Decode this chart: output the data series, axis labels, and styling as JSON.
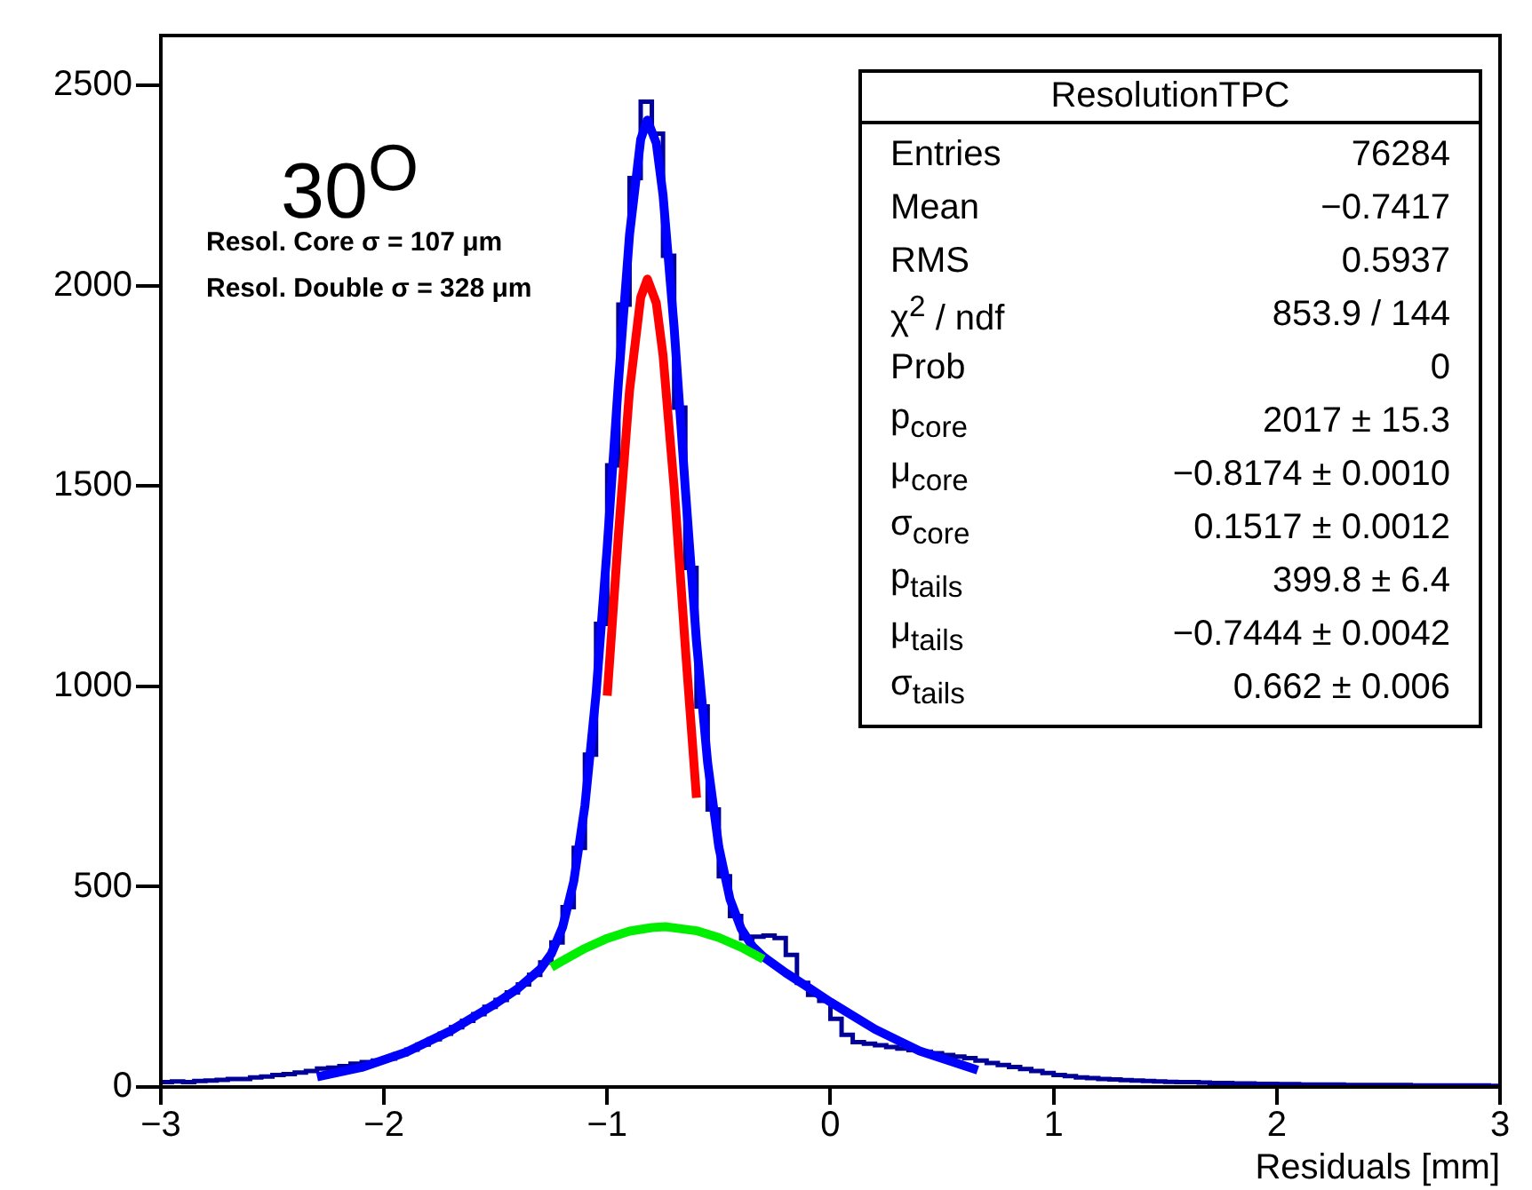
{
  "chart_data": {
    "type": "histogram",
    "xlabel": "Residuals [mm]",
    "xlim": [
      -3,
      3
    ],
    "xticks": [
      -3,
      -2,
      -1,
      0,
      1,
      2,
      3
    ],
    "ylim": [
      0,
      2625
    ],
    "yticks": [
      0,
      500,
      1000,
      1500,
      2000,
      2500
    ],
    "grid": false,
    "legend": false,
    "series": [
      {
        "type": "histogram",
        "color": "#000099",
        "bins": [
          -3,
          -2.95,
          -2.9,
          -2.85,
          -2.8,
          -2.75,
          -2.7,
          -2.65,
          -2.6,
          -2.55,
          -2.5,
          -2.45,
          -2.4,
          -2.35,
          -2.3,
          -2.25,
          -2.2,
          -2.15,
          -2.1,
          -2.05,
          -2,
          -1.95,
          -1.9,
          -1.85,
          -1.8,
          -1.75,
          -1.7,
          -1.65,
          -1.6,
          -1.55,
          -1.5,
          -1.45,
          -1.4,
          -1.35,
          -1.3,
          -1.25,
          -1.2,
          -1.15,
          -1.1,
          -1.05,
          -1,
          -0.95,
          -0.9,
          -0.85,
          -0.8,
          -0.75,
          -0.7,
          -0.65,
          -0.6,
          -0.55,
          -0.5,
          -0.45,
          -0.4,
          -0.35,
          -0.3,
          -0.25,
          -0.2,
          -0.15,
          -0.1,
          -0.05,
          0,
          0.05,
          0.1,
          0.15,
          0.2,
          0.25,
          0.3,
          0.35,
          0.4,
          0.45,
          0.5,
          0.55,
          0.6,
          0.65,
          0.7,
          0.75,
          0.8,
          0.85,
          0.9,
          0.95,
          1,
          1.05,
          1.1,
          1.15,
          1.2,
          1.25,
          1.3,
          1.35,
          1.4,
          1.45,
          1.5,
          1.55,
          1.6,
          1.65,
          1.7,
          1.75,
          1.8,
          1.85,
          1.9,
          1.95,
          2,
          2.05,
          2.1,
          2.15,
          2.2,
          2.25,
          2.3,
          2.35,
          2.4,
          2.45,
          2.5,
          2.55,
          2.6,
          2.65,
          2.7,
          2.75,
          2.8,
          2.85,
          2.9,
          2.95,
          3
        ],
        "values": [
          12,
          14,
          12,
          15,
          16,
          18,
          20,
          20,
          24,
          26,
          30,
          32,
          36,
          40,
          46,
          48,
          52,
          58,
          62,
          66,
          71,
          82,
          93,
          106,
          119,
          133,
          149,
          165,
          182,
          200,
          217,
          236,
          256,
          280,
          311,
          361,
          449,
          597,
          830,
          1156,
          1552,
          1953,
          2269,
          2460,
          2380,
          2075,
          1696,
          1296,
          950,
          693,
          526,
          427,
          371,
          375,
          378,
          372,
          330,
          260,
          230,
          215,
          170,
          130,
          112,
          108,
          104,
          100,
          96,
          92,
          88,
          84,
          80,
          76,
          72,
          66,
          60,
          55,
          50,
          45,
          40,
          35,
          30,
          27,
          24,
          22,
          20,
          19,
          17,
          16,
          15,
          14,
          13,
          12,
          12,
          11,
          10,
          10,
          9,
          9,
          8,
          8,
          7,
          7,
          6,
          6,
          6,
          6,
          5,
          5,
          5,
          5,
          5,
          5,
          4,
          4,
          4,
          4,
          4,
          4,
          4,
          3
        ]
      },
      {
        "type": "line",
        "color": "#0000ff",
        "x": [
          -2.3,
          -2.1,
          -1.9,
          -1.7,
          -1.5,
          -1.4,
          -1.3,
          -1.25,
          -1.2,
          -1.15,
          -1.1,
          -1.05,
          -1.0,
          -0.95,
          -0.9,
          -0.85,
          -0.82,
          -0.78,
          -0.75,
          -0.7,
          -0.65,
          -0.6,
          -0.55,
          -0.5,
          -0.45,
          -0.4,
          -0.35,
          -0.3,
          -0.2,
          -0.1,
          0,
          0.2,
          0.4,
          0.66
        ],
        "values": [
          25,
          49,
          87,
          141,
          208,
          246,
          294,
          333,
          399,
          513,
          702,
          981,
          1348,
          1758,
          2128,
          2366,
          2414,
          2356,
          2227,
          1894,
          1493,
          1112,
          809,
          599,
          469,
          395,
          352,
          325,
          285,
          249,
          212,
          144,
          90,
          42
        ]
      },
      {
        "type": "line",
        "color": "#00ee00",
        "x": [
          -1.25,
          -1.2,
          -1.1,
          -1.0,
          -0.9,
          -0.8,
          -0.74,
          -0.6,
          -0.5,
          -0.4,
          -0.3
        ],
        "values": [
          299,
          315,
          346,
          371,
          389,
          398,
          400,
          390,
          373,
          349,
          319
        ]
      },
      {
        "type": "line",
        "color": "#ff0000",
        "x": [
          -1.0,
          -0.95,
          -0.9,
          -0.85,
          -0.82,
          -0.78,
          -0.75,
          -0.7,
          -0.65,
          -0.6
        ],
        "values": [
          977,
          1377,
          1739,
          1971,
          2017,
          1957,
          1827,
          1495,
          1097,
          722
        ]
      }
    ],
    "annotations": [
      "30$^{O}$",
      "Resol. Core σ = 107 μm",
      "Resol. Double σ = 328 μm",
      "ResolutionTPC",
      "Entries",
      "76284",
      "Mean",
      "−0.7417",
      "RMS",
      "0.5937",
      "χ$^{2}$ / ndf",
      "853.9 / 144",
      "Prob",
      "0",
      "p$_{core}$",
      "2017 ± 15.3",
      "μ$_{core}$",
      "−0.8174 ± 0.0010",
      "σ$_{core}$",
      "0.1517 ± 0.0012",
      "p$_{tails}$",
      "399.8 ± 6.4",
      "μ$_{tails}$",
      "−0.7444 ± 0.0042",
      "σ$_{tails}$",
      "0.662 ± 0.006"
    ]
  }
}
